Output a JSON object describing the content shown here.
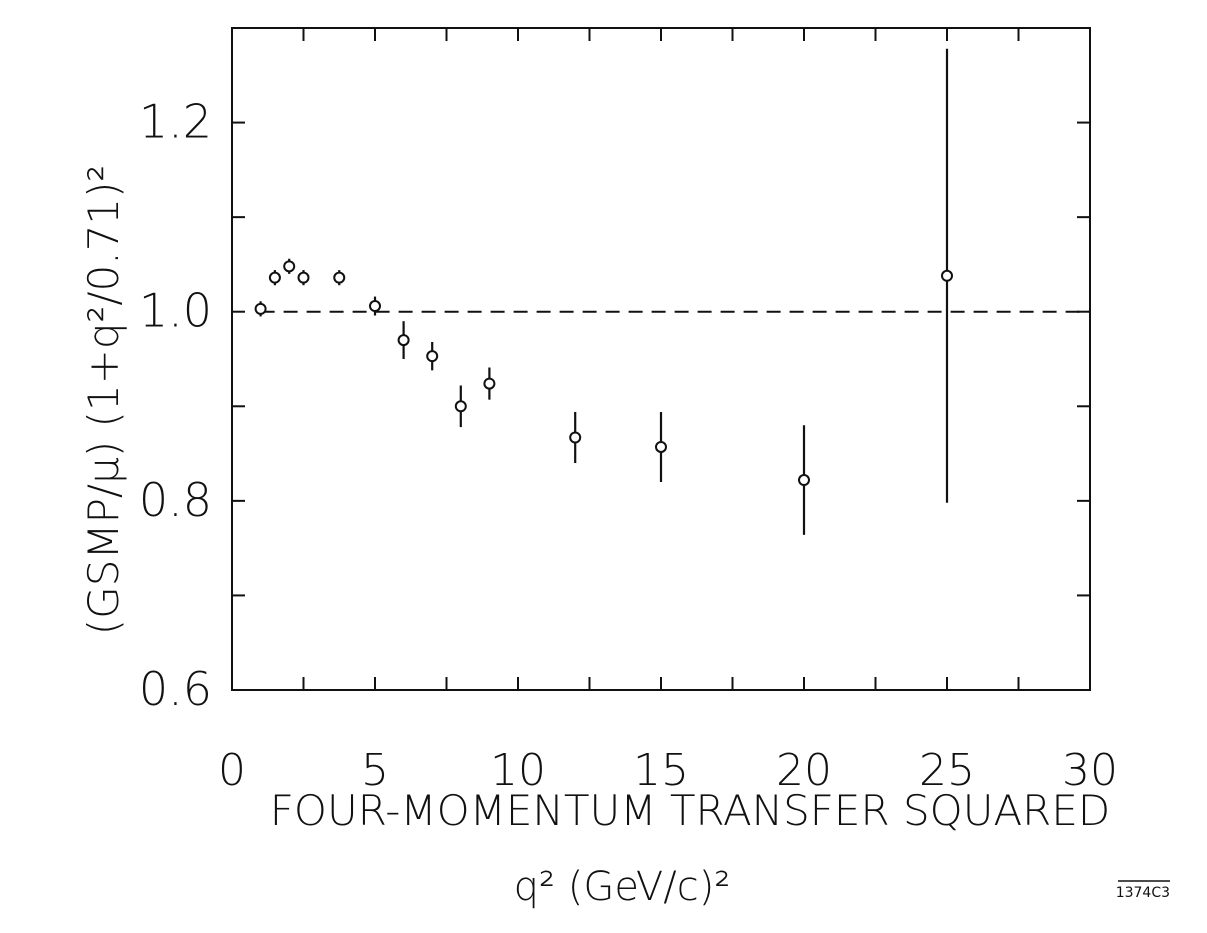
{
  "chart_data": {
    "type": "scatter",
    "title": "",
    "xlabel_line1": "FOUR-MOMENTUM TRANSFER SQUARED",
    "xlabel_line2": "q² (GeV/c)²",
    "ylabel": "(GSMP/μ) (1+q²/0.71)²",
    "xlim": [
      0,
      30
    ],
    "ylim": [
      0.6,
      1.3
    ],
    "xticks_major": [
      0,
      5,
      10,
      15,
      20,
      25,
      30
    ],
    "xtick_labels": [
      "0",
      "5",
      "10",
      "15",
      "20",
      "25",
      "30"
    ],
    "yticks_major": [
      0.6,
      0.8,
      1.0,
      1.2
    ],
    "ytick_labels": [
      "0.6",
      "0.8",
      "1.0",
      "1.2"
    ],
    "grid": false,
    "reference_line": {
      "y": 1.0,
      "style": "dashed"
    },
    "points": [
      {
        "x": 1.0,
        "y": 1.003,
        "err": 0.008
      },
      {
        "x": 1.5,
        "y": 1.036,
        "err": 0.008
      },
      {
        "x": 2.0,
        "y": 1.048,
        "err": 0.008
      },
      {
        "x": 2.5,
        "y": 1.036,
        "err": 0.008
      },
      {
        "x": 3.75,
        "y": 1.036,
        "err": 0.008
      },
      {
        "x": 5.0,
        "y": 1.006,
        "err": 0.01
      },
      {
        "x": 6.0,
        "y": 0.97,
        "err": 0.02
      },
      {
        "x": 7.0,
        "y": 0.953,
        "err": 0.015
      },
      {
        "x": 8.0,
        "y": 0.9,
        "err": 0.022
      },
      {
        "x": 9.0,
        "y": 0.924,
        "err": 0.017
      },
      {
        "x": 12.0,
        "y": 0.867,
        "err": 0.027
      },
      {
        "x": 15.0,
        "y": 0.857,
        "err": 0.037
      },
      {
        "x": 20.0,
        "y": 0.822,
        "err": 0.058
      },
      {
        "x": 25.0,
        "y": 1.038,
        "err": 0.24
      }
    ],
    "figure_id": "1374C3"
  }
}
